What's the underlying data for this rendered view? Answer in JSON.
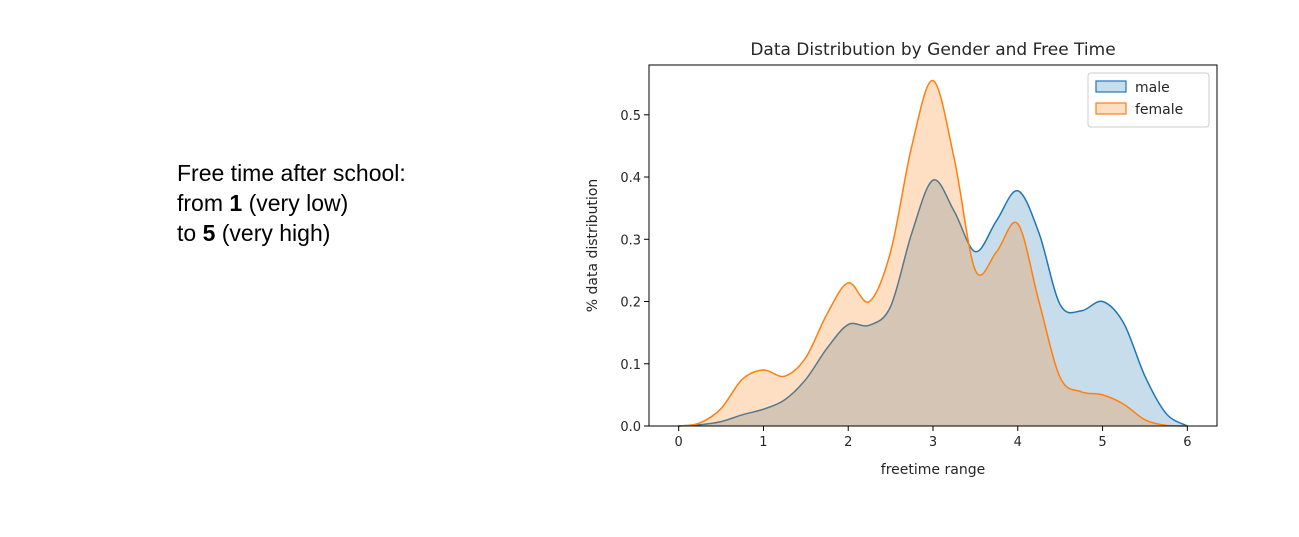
{
  "note": {
    "line1": "Free time after school:",
    "line2_pre": "from ",
    "line2_bold": "1",
    "line2_post": " (very low)",
    "line3_pre": "to ",
    "line3_bold": "5",
    "line3_post": " (very high)"
  },
  "chart_data": {
    "type": "area",
    "title": "Data Distribution by Gender and Free Time",
    "xlabel": "freetime range",
    "ylabel": "% data distribution",
    "xlim": [
      -0.35,
      6.35
    ],
    "ylim": [
      0,
      0.58
    ],
    "xticks": [
      0,
      1,
      2,
      3,
      4,
      5,
      6
    ],
    "yticks": [
      0.0,
      0.1,
      0.2,
      0.3,
      0.4,
      0.5
    ],
    "ytick_labels": [
      "0.0",
      "0.1",
      "0.2",
      "0.3",
      "0.4",
      "0.5"
    ],
    "legend_position": "top-right",
    "grid": false,
    "x": [
      0,
      0.25,
      0.5,
      0.75,
      1.0,
      1.25,
      1.5,
      1.75,
      2.0,
      2.25,
      2.5,
      2.75,
      3.0,
      3.25,
      3.5,
      3.75,
      4.0,
      4.25,
      4.5,
      4.75,
      5.0,
      5.25,
      5.5,
      5.75,
      6.0
    ],
    "series": [
      {
        "name": "male",
        "color": "#1f77b4",
        "values": [
          0.0,
          0.002,
          0.007,
          0.018,
          0.027,
          0.042,
          0.075,
          0.125,
          0.163,
          0.162,
          0.192,
          0.31,
          0.395,
          0.345,
          0.28,
          0.33,
          0.378,
          0.31,
          0.195,
          0.185,
          0.2,
          0.165,
          0.08,
          0.02,
          0.0
        ]
      },
      {
        "name": "female",
        "color": "#ff7f0e",
        "values": [
          0.0,
          0.005,
          0.028,
          0.075,
          0.09,
          0.08,
          0.11,
          0.18,
          0.23,
          0.2,
          0.28,
          0.45,
          0.555,
          0.43,
          0.25,
          0.28,
          0.325,
          0.2,
          0.078,
          0.055,
          0.05,
          0.035,
          0.01,
          0.001,
          0.0
        ]
      }
    ]
  }
}
